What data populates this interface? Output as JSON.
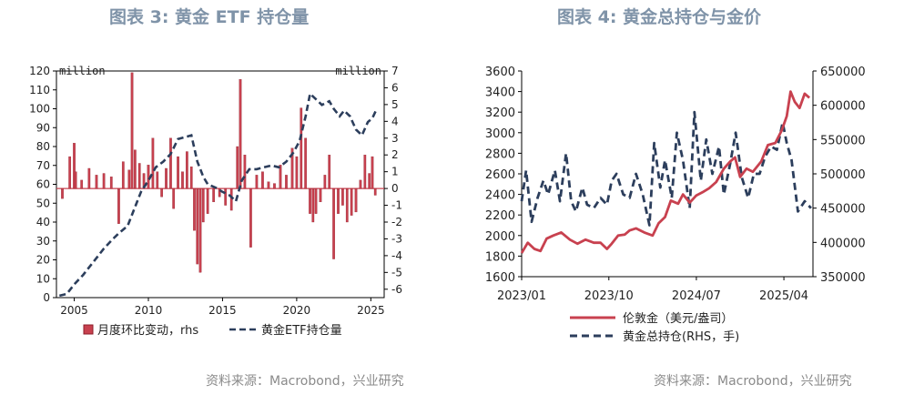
{
  "left_panel": {
    "title": "图表 3:  黄金 ETF 持仓量",
    "source": "资料来源：Macrobond，兴业研究"
  },
  "right_panel": {
    "title": "图表 4:  黄金总持仓与金价",
    "source": "资料来源：Macrobond，兴业研究"
  },
  "colors": {
    "bar": "#c8414f",
    "holdings": "#2c3e5c",
    "gold": "#c8414f"
  },
  "chart_data": [
    {
      "type": "bar",
      "title": "图表 3:  黄金 ETF 持仓量",
      "y_unit_left": "million",
      "y_unit_right": "million",
      "ylim_left": [
        0,
        120
      ],
      "ylim_right": [
        -6.5,
        7
      ],
      "x_ticks": [
        "2005",
        "2010",
        "2015",
        "2020",
        "2025"
      ],
      "y_ticks_left": [
        "0",
        "10",
        "20",
        "30",
        "40",
        "50",
        "60",
        "70",
        "80",
        "90",
        "100",
        "110",
        "120"
      ],
      "y_ticks_right": [
        "-6",
        "-5",
        "-4",
        "-3",
        "-2",
        "-1",
        "0",
        "1",
        "2",
        "3",
        "4",
        "5",
        "6",
        "7"
      ],
      "legend_position": "bottom",
      "series": [
        {
          "name": "月度环比变动，rhs",
          "kind": "bar",
          "axis": "right",
          "x": [
            2004.2,
            2004.7,
            2005.0,
            2005.1,
            2005.5,
            2006.0,
            2006.5,
            2007.0,
            2007.5,
            2008.0,
            2008.3,
            2008.7,
            2008.9,
            2009.1,
            2009.4,
            2009.7,
            2010.0,
            2010.3,
            2010.6,
            2010.9,
            2011.2,
            2011.5,
            2011.7,
            2012.0,
            2012.3,
            2012.6,
            2012.9,
            2013.1,
            2013.3,
            2013.5,
            2013.7,
            2014.0,
            2014.4,
            2014.8,
            2015.2,
            2015.6,
            2016.0,
            2016.2,
            2016.5,
            2016.9,
            2017.3,
            2017.7,
            2018.1,
            2018.5,
            2018.9,
            2019.3,
            2019.7,
            2020.0,
            2020.3,
            2020.6,
            2020.9,
            2021.1,
            2021.3,
            2021.6,
            2021.9,
            2022.2,
            2022.5,
            2022.8,
            2023.1,
            2023.4,
            2023.7,
            2024.0,
            2024.3,
            2024.6,
            2024.9,
            2025.1,
            2025.3
          ],
          "values": [
            -0.6,
            1.9,
            2.7,
            1.0,
            0.5,
            1.2,
            0.8,
            0.9,
            0.7,
            -2.1,
            1.6,
            1.1,
            6.9,
            2.3,
            1.5,
            0.9,
            1.4,
            3.0,
            1.0,
            -0.5,
            1.2,
            3.0,
            -1.2,
            1.9,
            1.0,
            2.2,
            1.3,
            -2.5,
            -4.5,
            -5.0,
            -2.0,
            -1.5,
            -0.8,
            -0.5,
            -1.0,
            -1.3,
            2.5,
            6.5,
            2.0,
            -3.5,
            0.8,
            1.0,
            0.4,
            0.3,
            1.4,
            0.8,
            2.4,
            1.9,
            4.8,
            3.0,
            -1.5,
            -2.0,
            -1.5,
            -0.8,
            0.8,
            2.0,
            -4.2,
            -1.5,
            -1.0,
            -2.0,
            -1.6,
            -1.4,
            0.5,
            2.0,
            0.9,
            1.9,
            -0.4
          ]
        },
        {
          "name": "黄金ETF持仓量",
          "kind": "line",
          "axis": "left",
          "x": [
            2004.0,
            2004.5,
            2005.0,
            2005.6,
            2006.0,
            2006.6,
            2007.0,
            2007.6,
            2008.0,
            2008.6,
            2009.0,
            2009.5,
            2010.0,
            2010.5,
            2011.0,
            2011.5,
            2012.0,
            2012.5,
            2012.9,
            2013.3,
            2013.7,
            2014.0,
            2014.6,
            2015.0,
            2015.5,
            2015.9,
            2016.3,
            2016.8,
            2017.3,
            2017.8,
            2018.3,
            2018.8,
            2019.3,
            2019.8,
            2020.2,
            2020.6,
            2020.9,
            2021.3,
            2021.7,
            2022.2,
            2022.5,
            2022.9,
            2023.2,
            2023.6,
            2024.0,
            2024.4,
            2024.8,
            2025.1,
            2025.4
          ],
          "values": [
            1,
            2,
            7,
            12,
            16,
            22,
            26,
            31,
            34,
            38,
            46,
            56,
            62,
            69,
            72,
            76,
            84,
            85,
            86,
            72,
            64,
            60,
            58,
            56,
            54,
            51,
            62,
            68,
            68,
            69,
            70,
            69,
            72,
            77,
            83,
            96,
            108,
            105,
            102,
            104,
            100,
            96,
            99,
            96,
            89,
            86,
            93,
            95,
            100
          ]
        }
      ]
    },
    {
      "type": "line",
      "title": "图表 4:  黄金总持仓与金价",
      "ylim_left": [
        1600,
        3600
      ],
      "ylim_right": [
        350000,
        650000
      ],
      "x_ticks": [
        "2023/01",
        "2023/10",
        "2024/07",
        "2025/04"
      ],
      "y_ticks_left": [
        "1600",
        "1800",
        "2000",
        "2200",
        "2400",
        "2600",
        "2800",
        "3000",
        "3200",
        "3400",
        "3600"
      ],
      "y_ticks_right": [
        "350000",
        "400000",
        "450000",
        "500000",
        "550000",
        "600000",
        "650000"
      ],
      "legend_position": "bottom",
      "series": [
        {
          "name": "伦敦金（美元/盎司）",
          "axis": "left",
          "x": [
            "2023-01-01",
            "2023-01-20",
            "2023-02-10",
            "2023-03-01",
            "2023-03-20",
            "2023-04-10",
            "2023-05-05",
            "2023-06-01",
            "2023-06-25",
            "2023-07-20",
            "2023-08-15",
            "2023-09-05",
            "2023-09-25",
            "2023-10-10",
            "2023-10-30",
            "2023-11-20",
            "2023-12-05",
            "2023-12-25",
            "2024-01-20",
            "2024-02-15",
            "2024-03-05",
            "2024-03-25",
            "2024-04-12",
            "2024-05-05",
            "2024-05-20",
            "2024-06-10",
            "2024-07-01",
            "2024-07-20",
            "2024-08-10",
            "2024-09-01",
            "2024-09-25",
            "2024-10-15",
            "2024-10-30",
            "2024-11-15",
            "2024-12-05",
            "2024-12-25",
            "2025-01-20",
            "2025-02-10",
            "2025-03-05",
            "2025-03-25",
            "2025-04-10",
            "2025-04-22",
            "2025-05-05",
            "2025-05-20",
            "2025-06-05",
            "2025-06-20"
          ],
          "values": [
            1830,
            1930,
            1870,
            1850,
            1970,
            2000,
            2030,
            1960,
            1920,
            1960,
            1930,
            1930,
            1870,
            1920,
            2000,
            2010,
            2050,
            2070,
            2030,
            2000,
            2120,
            2180,
            2340,
            2310,
            2400,
            2320,
            2390,
            2420,
            2460,
            2520,
            2650,
            2720,
            2760,
            2570,
            2650,
            2620,
            2720,
            2880,
            2900,
            3020,
            3160,
            3400,
            3300,
            3240,
            3380,
            3340
          ]
        },
        {
          "name": "黄金总持仓(RHS，手)",
          "axis": "right",
          "x": [
            "2023-01-01",
            "2023-01-15",
            "2023-02-01",
            "2023-02-20",
            "2023-03-10",
            "2023-03-25",
            "2023-04-15",
            "2023-05-01",
            "2023-05-20",
            "2023-06-05",
            "2023-06-20",
            "2023-07-10",
            "2023-07-25",
            "2023-08-15",
            "2023-09-05",
            "2023-09-25",
            "2023-10-10",
            "2023-10-25",
            "2023-11-15",
            "2023-12-05",
            "2023-12-25",
            "2024-01-15",
            "2024-02-05",
            "2024-02-20",
            "2024-03-10",
            "2024-03-25",
            "2024-04-15",
            "2024-05-01",
            "2024-05-20",
            "2024-06-10",
            "2024-06-25",
            "2024-07-15",
            "2024-08-01",
            "2024-08-20",
            "2024-09-10",
            "2024-09-25",
            "2024-10-15",
            "2024-11-01",
            "2024-11-20",
            "2024-12-10",
            "2024-12-28",
            "2025-01-15",
            "2025-02-01",
            "2025-02-20",
            "2025-03-10",
            "2025-03-28",
            "2025-04-10",
            "2025-04-25",
            "2025-05-15",
            "2025-06-05",
            "2025-06-25"
          ],
          "values": [
            460000,
            505000,
            430000,
            465000,
            490000,
            470000,
            505000,
            460000,
            530000,
            460000,
            445000,
            480000,
            455000,
            450000,
            465000,
            455000,
            490000,
            500000,
            470000,
            465000,
            500000,
            470000,
            425000,
            545000,
            480000,
            520000,
            465000,
            560000,
            520000,
            450000,
            590000,
            490000,
            550000,
            500000,
            540000,
            470000,
            515000,
            560000,
            495000,
            465000,
            500000,
            500000,
            525000,
            540000,
            535000,
            575000,
            545000,
            520000,
            445000,
            460000,
            450000
          ]
        }
      ]
    }
  ]
}
